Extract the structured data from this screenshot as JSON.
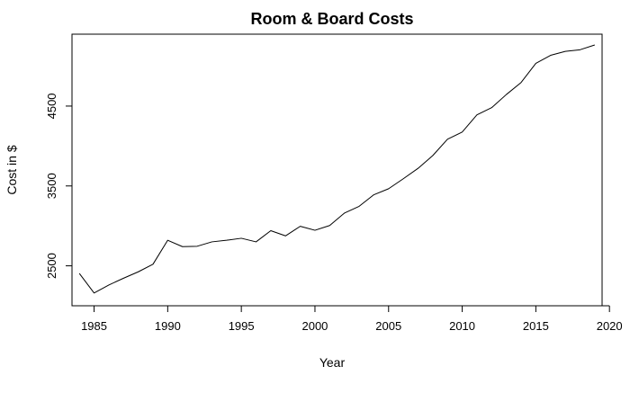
{
  "chart_data": {
    "type": "line",
    "title": "Room & Board Costs",
    "xlabel": "Year",
    "ylabel": "Cost in $",
    "xlim": [
      1983.5,
      2019.5
    ],
    "ylim": [
      2000,
      5400
    ],
    "xticks": [
      1985,
      1990,
      1995,
      2000,
      2005,
      2010,
      2015,
      2020
    ],
    "yticks": [
      2500,
      3500,
      4500
    ],
    "grid": false,
    "series": [
      {
        "color": "#000000",
        "x": [
          1984,
          1985,
          1986,
          1987,
          1988,
          1989,
          1990,
          1991,
          1992,
          1993,
          1994,
          1995,
          1996,
          1997,
          1998,
          1999,
          2000,
          2001,
          2002,
          2003,
          2004,
          2005,
          2006,
          2007,
          2008,
          2009,
          2010,
          2011,
          2012,
          2013,
          2014,
          2015,
          2016,
          2017,
          2018,
          2019
        ],
        "y": [
          2405,
          2160,
          2260,
          2345,
          2425,
          2520,
          2820,
          2740,
          2745,
          2800,
          2820,
          2845,
          2800,
          2940,
          2875,
          2995,
          2945,
          3005,
          3160,
          3245,
          3390,
          3465,
          3590,
          3720,
          3880,
          4085,
          4175,
          4390,
          4480,
          4645,
          4795,
          5035,
          5135,
          5185,
          5205,
          5265
        ]
      }
    ]
  }
}
